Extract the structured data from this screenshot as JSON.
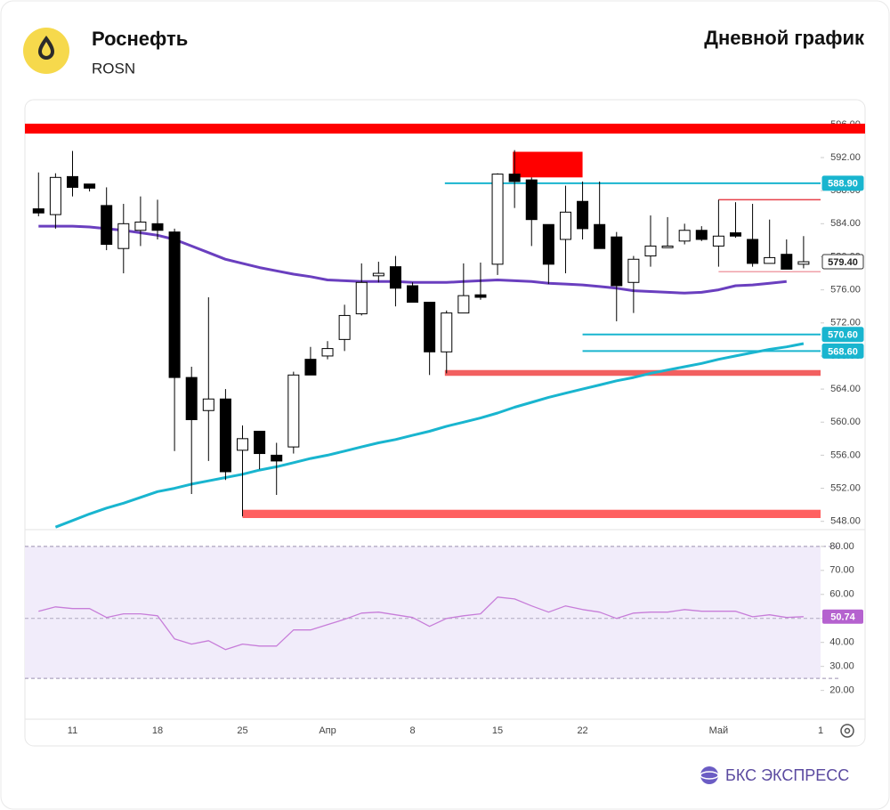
{
  "header": {
    "title": "Роснефть",
    "ticker": "ROSN",
    "subtitle": "Дневной график"
  },
  "brand": "БКС ЭКСПРЕСС",
  "chart_data": {
    "type": "candlestick",
    "categories": [
      null,
      null,
      "11",
      null,
      null,
      null,
      null,
      "18",
      null,
      null,
      null,
      null,
      "25",
      null,
      null,
      null,
      null,
      "Апр",
      null,
      null,
      null,
      null,
      "8",
      null,
      null,
      null,
      null,
      "15",
      null,
      null,
      null,
      null,
      "22",
      null,
      null,
      null,
      null,
      null,
      null,
      null,
      "Май",
      null,
      null,
      null,
      null,
      null,
      "1"
    ],
    "xlim": [
      -0.8,
      46
    ],
    "open": [
      585.8,
      585.1,
      589.7,
      588.8,
      586.2,
      581.0,
      583.2,
      584.0,
      583.0,
      565.4,
      561.4,
      562.8,
      556.6,
      558.9,
      556.0,
      557.0,
      567.6,
      568.0,
      570.0,
      573.1,
      577.7,
      578.8,
      576.5,
      574.5,
      568.5,
      573.2,
      575.4,
      579.1,
      590.0,
      589.3,
      583.9,
      582.1,
      586.7,
      583.9,
      582.4,
      576.9,
      580.1,
      581.1,
      581.9,
      583.2,
      581.3,
      582.9,
      582.1,
      579.2,
      580.3,
      579.1,
      null
    ],
    "high": [
      590.2,
      590.1,
      592.8,
      588.8,
      588.4,
      586.4,
      587.3,
      586.9,
      583.4,
      566.7,
      575.1,
      564.0,
      559.6,
      558.9,
      557.5,
      566.1,
      569.1,
      569.8,
      574.2,
      579.2,
      579.4,
      580.1,
      576.9,
      574.5,
      573.5,
      579.2,
      579.3,
      590.1,
      592.9,
      589.6,
      583.9,
      588.6,
      589.1,
      589.1,
      583.0,
      580.1,
      585.0,
      584.8,
      584.0,
      583.7,
      586.9,
      586.6,
      586.4,
      584.5,
      582.1,
      582.5,
      null
    ],
    "low": [
      584.9,
      583.4,
      587.3,
      587.9,
      580.8,
      578.0,
      581.3,
      582.1,
      556.5,
      551.3,
      555.3,
      553.0,
      548.6,
      554.3,
      551.2,
      556.2,
      565.7,
      567.6,
      568.6,
      572.9,
      576.9,
      574.0,
      574.5,
      565.7,
      565.9,
      573.2,
      574.8,
      577.8,
      585.9,
      581.3,
      576.7,
      578.0,
      582.1,
      581.0,
      572.2,
      573.2,
      578.8,
      581.1,
      581.5,
      581.9,
      578.8,
      582.3,
      578.8,
      579.2,
      578.5,
      578.6,
      null
    ],
    "close": [
      585.3,
      589.6,
      588.4,
      588.3,
      581.5,
      584.0,
      584.2,
      583.2,
      565.4,
      560.3,
      562.8,
      554.0,
      558.0,
      556.2,
      555.3,
      565.7,
      565.7,
      568.9,
      572.9,
      576.9,
      578.0,
      576.2,
      574.5,
      568.5,
      573.2,
      575.3,
      575.1,
      590.0,
      589.1,
      584.5,
      579.1,
      585.4,
      583.4,
      581.0,
      576.5,
      579.7,
      581.3,
      581.3,
      583.2,
      582.1,
      582.5,
      582.5,
      579.2,
      579.9,
      578.5,
      579.4,
      null
    ],
    "up_color": "#ffffff",
    "down_color": "#000000",
    "series": [
      {
        "color": "#6a3fbf",
        "values": [
          583.7,
          583.7,
          583.7,
          583.6,
          583.4,
          583.2,
          582.9,
          582.6,
          582.1,
          581.3,
          580.5,
          579.7,
          579.2,
          578.7,
          578.3,
          577.9,
          577.6,
          577.2,
          577.1,
          577.0,
          577.0,
          577.0,
          576.9,
          576.9,
          576.9,
          577.0,
          577.1,
          577.2,
          577.1,
          577.0,
          576.8,
          576.7,
          576.6,
          576.4,
          576.2,
          575.9,
          575.8,
          575.7,
          575.6,
          575.7,
          576.0,
          576.5,
          576.6,
          576.8,
          577.0,
          null,
          null
        ]
      },
      {
        "color": "#19b5cf",
        "values": [
          null,
          547.3,
          548.1,
          548.9,
          549.6,
          550.2,
          550.9,
          551.6,
          552.0,
          552.5,
          552.9,
          553.3,
          553.7,
          554.2,
          554.6,
          555.1,
          555.6,
          556.0,
          556.5,
          557.0,
          557.5,
          557.9,
          558.4,
          558.9,
          559.5,
          560.0,
          560.5,
          561.1,
          561.8,
          562.4,
          563.0,
          563.5,
          564.0,
          564.5,
          565.0,
          565.4,
          565.9,
          566.3,
          566.7,
          567.1,
          567.6,
          568.0,
          568.4,
          568.8,
          569.1,
          569.5,
          null
        ]
      }
    ],
    "ylim": [
      547,
      599
    ],
    "yticks": [
      {
        "value": 548,
        "label": "548.00"
      },
      {
        "value": 552,
        "label": "552.00"
      },
      {
        "value": 556,
        "label": "556.00"
      },
      {
        "value": 560,
        "label": "560.00"
      },
      {
        "value": 564,
        "label": "564.00"
      },
      {
        "value": 568,
        "label": "568.00"
      },
      {
        "value": 572,
        "label": "572.00"
      },
      {
        "value": 576,
        "label": "576.00"
      },
      {
        "value": 580,
        "label": "580.00"
      },
      {
        "value": 584,
        "label": "584.00"
      },
      {
        "value": 588,
        "label": "588.00"
      },
      {
        "value": 592,
        "label": "592.00"
      },
      {
        "value": 596,
        "label": "596.00"
      }
    ],
    "zones": [
      {
        "low": 594.9,
        "high": 596.1,
        "x_from": -0.8,
        "color": "#ff0000"
      },
      {
        "low": 589.6,
        "high": 592.7,
        "x_from": 27.9,
        "x_to": 32.0,
        "color": "#ff0000"
      },
      {
        "low": 565.6,
        "high": 566.3,
        "x_from": 23.9,
        "color": "#f26060"
      },
      {
        "low": 548.4,
        "high": 549.4,
        "x_from": 12,
        "color": "#ff6060"
      }
    ],
    "lines": [
      {
        "value": 588.9,
        "label": "588.90",
        "x_from": 23.9,
        "color": "#19b5cf"
      },
      {
        "value": 586.9,
        "x_from": 40,
        "x_to": 46,
        "color": "#e8404a"
      },
      {
        "value": 578.2,
        "x_from": 40,
        "x_to": 46,
        "color": "#f0a0a8"
      },
      {
        "value": 570.6,
        "label": "570.60",
        "x_from": 32,
        "color": "#19b5cf"
      },
      {
        "value": 568.6,
        "label": "568.60",
        "x_from": 32,
        "color": "#19b5cf"
      }
    ],
    "last_price": {
      "value": 579.4,
      "label": "579.40"
    },
    "rsi": {
      "color": "#c77dd9",
      "values": [
        53.0,
        54.8,
        54.1,
        54.1,
        50.4,
        51.9,
        51.9,
        51.1,
        41.5,
        39.3,
        40.7,
        37.0,
        39.3,
        38.5,
        38.5,
        45.2,
        45.2,
        47.4,
        49.6,
        52.2,
        52.6,
        51.5,
        50.4,
        46.7,
        50.0,
        51.1,
        51.9,
        58.9,
        58.1,
        55.2,
        52.6,
        55.2,
        53.7,
        52.6,
        50.0,
        52.2,
        52.6,
        52.6,
        53.7,
        53.0,
        53.0,
        53.0,
        50.7,
        51.5,
        50.4,
        50.74,
        null
      ],
      "ylim": [
        8,
        87
      ],
      "yticks": [
        {
          "value": 20,
          "label": "20.00"
        },
        {
          "value": 30,
          "label": "30.00"
        },
        {
          "value": 40,
          "label": "40.00"
        },
        {
          "value": 50,
          "label": "50.00"
        },
        {
          "value": 60,
          "label": "60.00"
        },
        {
          "value": 70,
          "label": "70.00"
        },
        {
          "value": 80,
          "label": "80.00"
        }
      ],
      "bands": [
        25,
        80
      ],
      "midline": 50,
      "band_color": "#f1ecfa",
      "badge_color": "#b562cf"
    }
  }
}
